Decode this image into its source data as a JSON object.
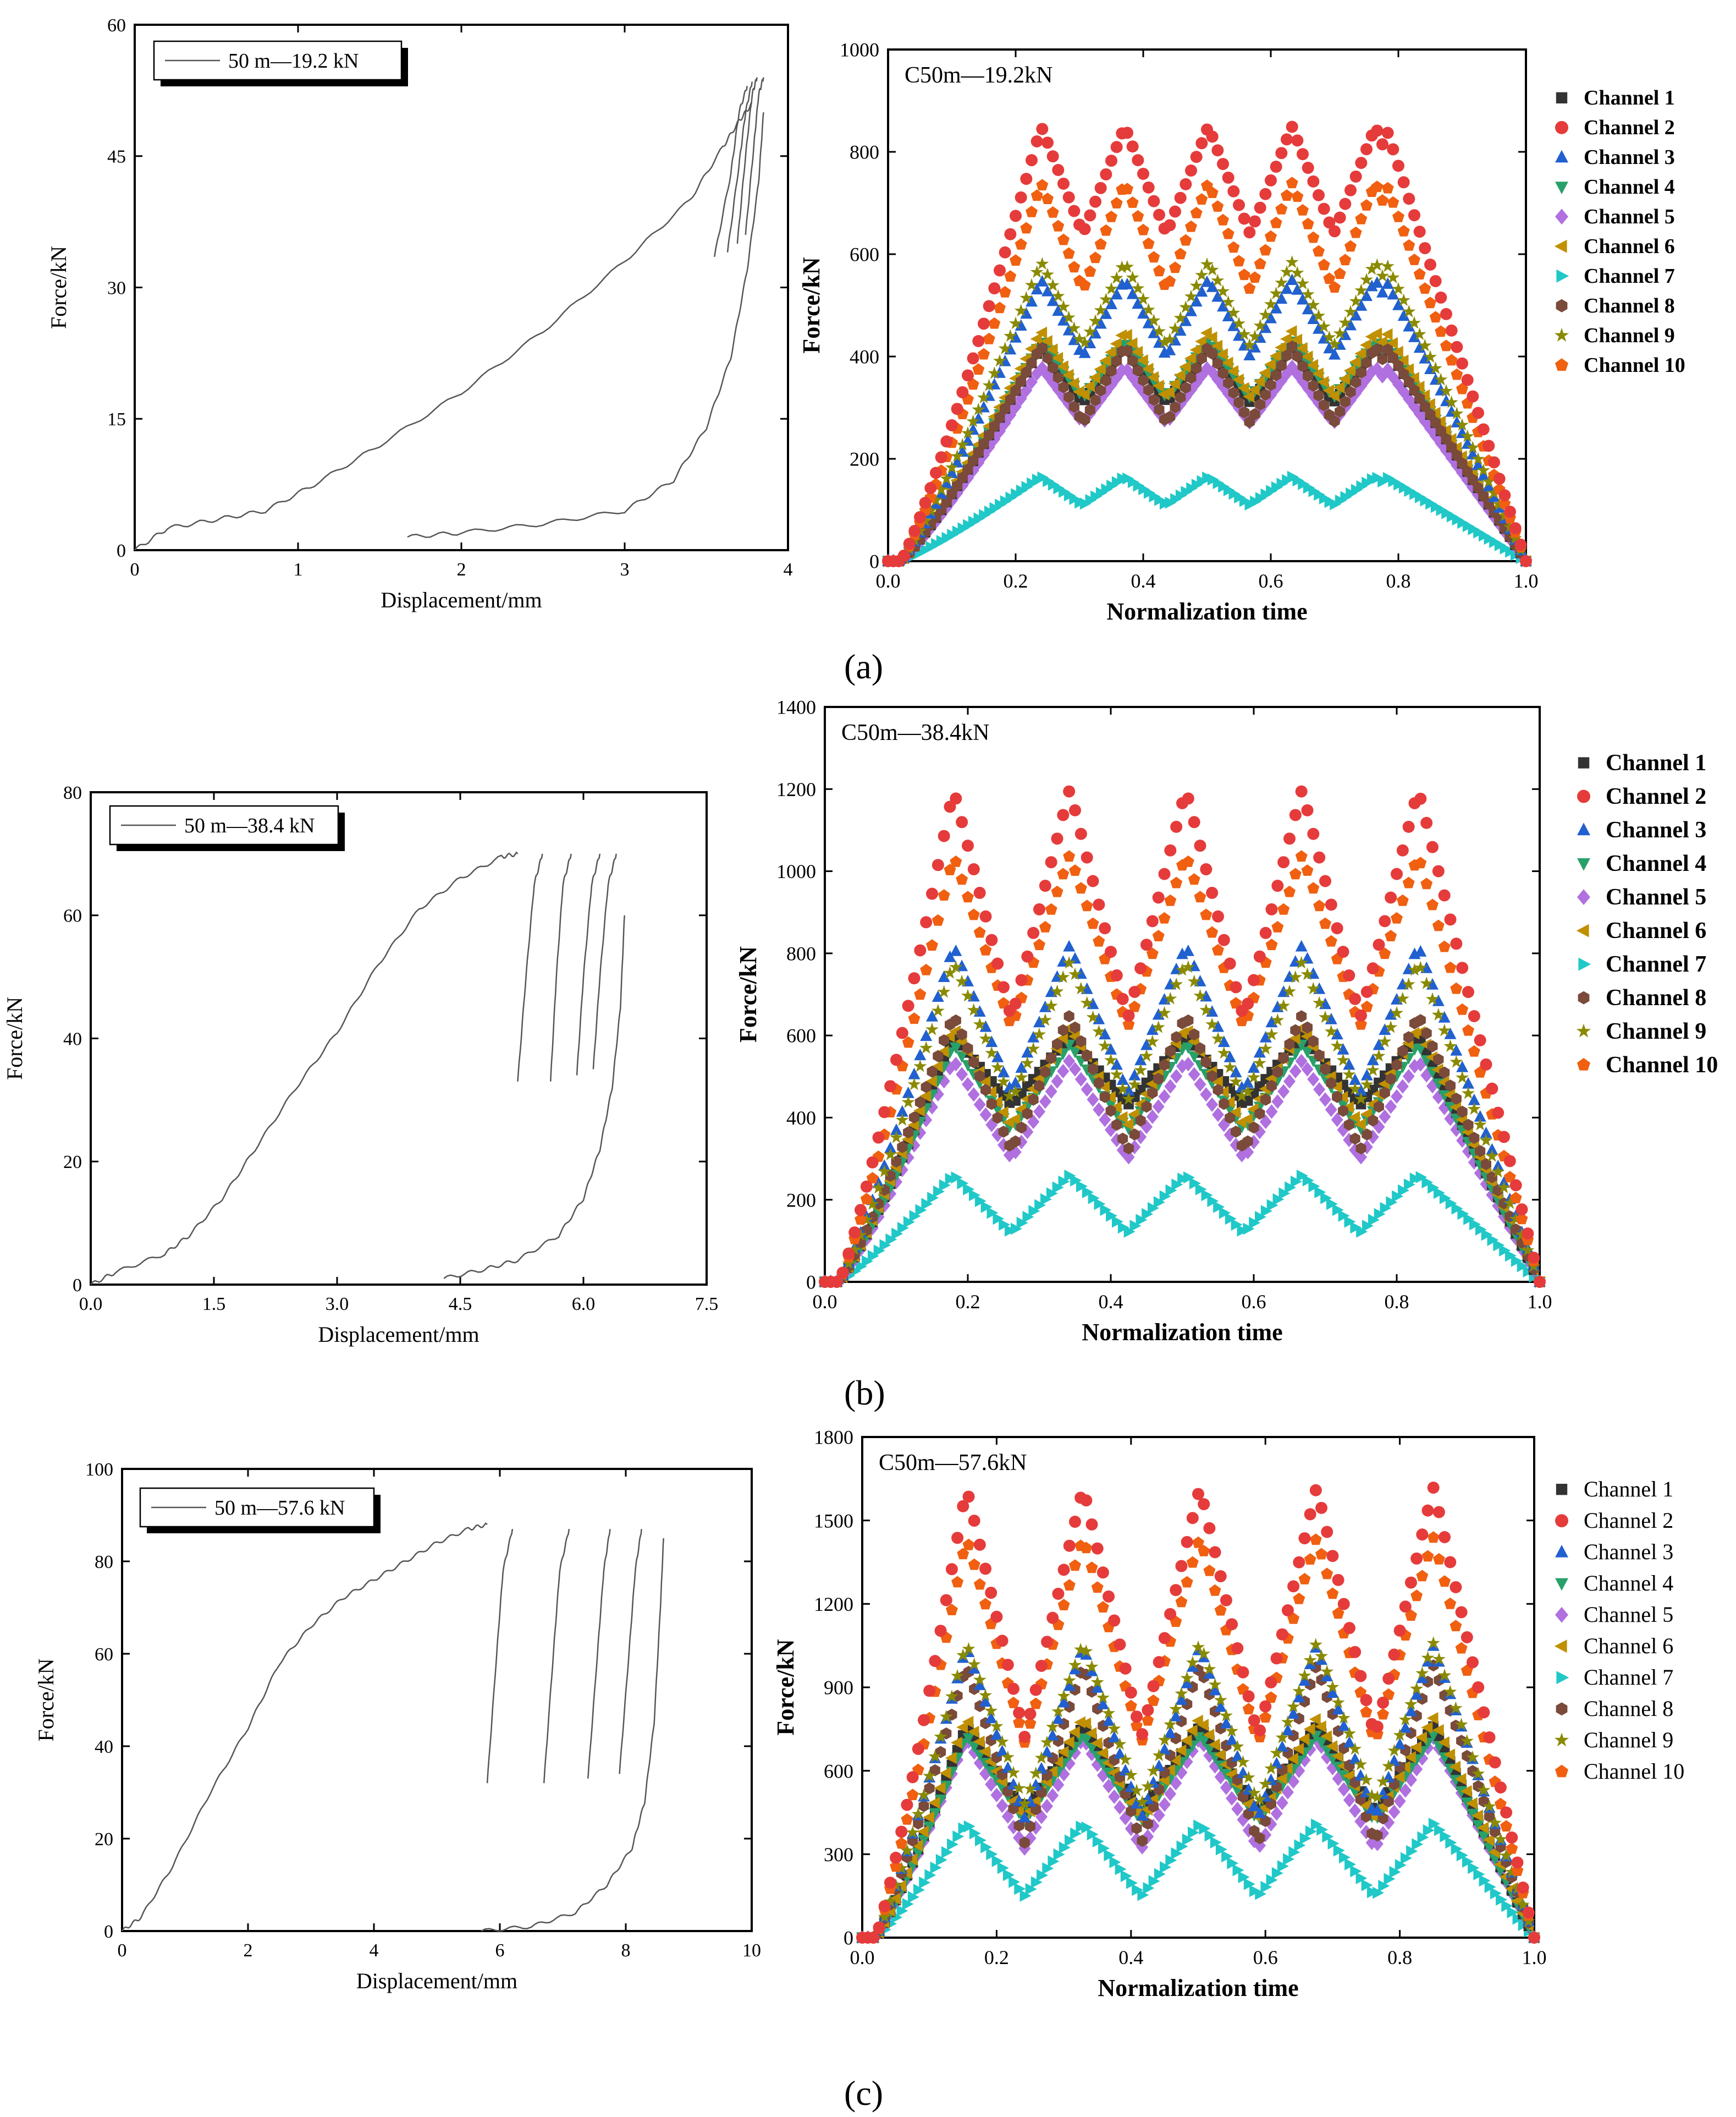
{
  "figure": {
    "panel_labels": [
      "(a)",
      "(b)",
      "(c)"
    ]
  },
  "chart_data": [
    {
      "id": "a-left",
      "type": "line",
      "xlabel": "Displacement/mm",
      "ylabel": "Force/kN",
      "xlim": [
        0,
        4
      ],
      "ylim": [
        0,
        60
      ],
      "xticks": [
        0,
        1,
        2,
        3,
        4
      ],
      "yticks": [
        0,
        15,
        30,
        45,
        60
      ],
      "legend": [
        "50 m—19.2 kN"
      ],
      "series": [
        {
          "name": "50 m—19.2 kN",
          "color": "#555555",
          "loading": [
            [
              0,
              0
            ],
            [
              0.2,
              2.5
            ],
            [
              0.5,
              3.5
            ],
            [
              0.8,
              4.5
            ],
            [
              1.1,
              7.5
            ],
            [
              1.5,
              12
            ],
            [
              2,
              18
            ],
            [
              2.5,
              25
            ],
            [
              3,
              33
            ],
            [
              3.4,
              40
            ],
            [
              3.6,
              46
            ],
            [
              3.7,
              49
            ],
            [
              3.78,
              51
            ]
          ],
          "cycles": [
            [
              [
                3.55,
                33.5
              ],
              [
                3.65,
                43
              ],
              [
                3.7,
                50
              ],
              [
                3.75,
                53
              ]
            ],
            [
              [
                3.63,
                34
              ],
              [
                3.7,
                44
              ],
              [
                3.74,
                50
              ],
              [
                3.78,
                53.5
              ]
            ],
            [
              [
                3.69,
                35
              ],
              [
                3.74,
                45
              ],
              [
                3.78,
                52
              ],
              [
                3.81,
                54
              ]
            ],
            [
              [
                3.74,
                36
              ],
              [
                3.79,
                46
              ],
              [
                3.82,
                52
              ],
              [
                3.85,
                54
              ]
            ]
          ],
          "unloading": [
            [
              1.67,
              1.5
            ],
            [
              2,
              2
            ],
            [
              2.5,
              3
            ],
            [
              3,
              4.5
            ],
            [
              3.3,
              8
            ],
            [
              3.5,
              14
            ],
            [
              3.65,
              22
            ],
            [
              3.75,
              32
            ],
            [
              3.82,
              42
            ],
            [
              3.85,
              50
            ]
          ]
        }
      ]
    },
    {
      "id": "a-right",
      "type": "scatter",
      "title": "C50m—19.2kN",
      "xlabel": "Normalization time",
      "ylabel": "Force/kN",
      "xlim": [
        0,
        1
      ],
      "ylim": [
        0,
        1000
      ],
      "xticks": [
        0.0,
        0.2,
        0.4,
        0.6,
        0.8,
        1.0
      ],
      "yticks": [
        0,
        200,
        400,
        600,
        800,
        1000
      ],
      "legend_bold": true,
      "cycles": 5,
      "rise_end": 0.24,
      "fall_start": 0.78,
      "period": 0.131,
      "series": [
        {
          "name": "Channel 1",
          "color": "#333333",
          "marker": "square",
          "peak": 420,
          "trough": 310
        },
        {
          "name": "Channel 2",
          "color": "#e63b3b",
          "marker": "circle",
          "peak": 850,
          "trough": 640
        },
        {
          "name": "Channel 3",
          "color": "#2060d0",
          "marker": "triangle-up",
          "peak": 550,
          "trough": 400
        },
        {
          "name": "Channel 4",
          "color": "#28a06a",
          "marker": "triangle-down",
          "peak": 430,
          "trough": 320
        },
        {
          "name": "Channel 5",
          "color": "#b070e0",
          "marker": "diamond",
          "peak": 380,
          "trough": 270
        },
        {
          "name": "Channel 6",
          "color": "#c09000",
          "marker": "triangle-left",
          "peak": 450,
          "trough": 320
        },
        {
          "name": "Channel 7",
          "color": "#20c8c8",
          "marker": "triangle-right",
          "peak": 165,
          "trough": 110
        },
        {
          "name": "Channel 8",
          "color": "#7a4a3a",
          "marker": "hexagon",
          "peak": 420,
          "trough": 270
        },
        {
          "name": "Channel 9",
          "color": "#8a8a00",
          "marker": "star",
          "peak": 585,
          "trough": 420
        },
        {
          "name": "Channel 10",
          "color": "#f06010",
          "marker": "pentagon",
          "peak": 740,
          "trough": 530
        }
      ]
    },
    {
      "id": "b-left",
      "type": "line",
      "xlabel": "Displacement/mm",
      "ylabel": "Force/kN",
      "xlim": [
        0,
        7.5
      ],
      "ylim": [
        0,
        80
      ],
      "xticks": [
        0.0,
        1.5,
        3.0,
        4.5,
        6.0,
        7.5
      ],
      "yticks": [
        0,
        20,
        40,
        60,
        80
      ],
      "legend": [
        "50 m—38.4 kN"
      ],
      "series": [
        {
          "name": "50 m—38.4 kN",
          "color": "#555555",
          "loading": [
            [
              0,
              0
            ],
            [
              0.3,
              2
            ],
            [
              0.9,
              5
            ],
            [
              1.2,
              8
            ],
            [
              1.6,
              14
            ],
            [
              2,
              22
            ],
            [
              2.5,
              32
            ],
            [
              3,
              41
            ],
            [
              3.5,
              52
            ],
            [
              4,
              61
            ],
            [
              4.5,
              66
            ],
            [
              5,
              69.5
            ],
            [
              5.2,
              70
            ]
          ],
          "cycles": [
            [
              [
                5.2,
                33
              ],
              [
                5.3,
                50
              ],
              [
                5.4,
                65
              ],
              [
                5.5,
                70
              ]
            ],
            [
              [
                5.6,
                33
              ],
              [
                5.67,
                50
              ],
              [
                5.75,
                65
              ],
              [
                5.85,
                70
              ]
            ],
            [
              [
                5.92,
                34
              ],
              [
                6,
                50
              ],
              [
                6.1,
                65
              ],
              [
                6.2,
                70
              ]
            ],
            [
              [
                6.12,
                35
              ],
              [
                6.2,
                50
              ],
              [
                6.3,
                65
              ],
              [
                6.4,
                70
              ]
            ]
          ],
          "unloading": [
            [
              4.3,
              1
            ],
            [
              4.8,
              2.5
            ],
            [
              5.2,
              4
            ],
            [
              5.7,
              8
            ],
            [
              6,
              14
            ],
            [
              6.2,
              22
            ],
            [
              6.35,
              32
            ],
            [
              6.45,
              45
            ],
            [
              6.5,
              60
            ]
          ]
        }
      ]
    },
    {
      "id": "b-right",
      "type": "scatter",
      "title": "C50m—38.4kN",
      "xlabel": "Normalization time",
      "ylabel": "Force/kN",
      "xlim": [
        0,
        1
      ],
      "ylim": [
        0,
        1400
      ],
      "xticks": [
        0.0,
        0.2,
        0.4,
        0.6,
        0.8,
        1.0
      ],
      "yticks": [
        0,
        200,
        400,
        600,
        800,
        1000,
        1200,
        1400
      ],
      "legend_bold": true,
      "cycles": 5,
      "rise_end": 0.18,
      "fall_start": 0.83,
      "period": 0.1625,
      "series": [
        {
          "name": "Channel 1",
          "color": "#333333",
          "marker": "square",
          "peak": 600,
          "trough": 430
        },
        {
          "name": "Channel 2",
          "color": "#e63b3b",
          "marker": "circle",
          "peak": 1200,
          "trough": 640
        },
        {
          "name": "Channel 3",
          "color": "#2060d0",
          "marker": "triangle-up",
          "peak": 820,
          "trough": 460
        },
        {
          "name": "Channel 4",
          "color": "#28a06a",
          "marker": "triangle-down",
          "peak": 580,
          "trough": 370
        },
        {
          "name": "Channel 5",
          "color": "#b070e0",
          "marker": "diamond",
          "peak": 540,
          "trough": 300
        },
        {
          "name": "Channel 6",
          "color": "#c09000",
          "marker": "triangle-left",
          "peak": 620,
          "trough": 380
        },
        {
          "name": "Channel 7",
          "color": "#20c8c8",
          "marker": "triangle-right",
          "peak": 260,
          "trough": 120
        },
        {
          "name": "Channel 8",
          "color": "#7a4a3a",
          "marker": "hexagon",
          "peak": 650,
          "trough": 320
        },
        {
          "name": "Channel 9",
          "color": "#8a8a00",
          "marker": "star",
          "peak": 780,
          "trough": 440
        },
        {
          "name": "Channel 10",
          "color": "#f06010",
          "marker": "pentagon",
          "peak": 1040,
          "trough": 620
        }
      ]
    },
    {
      "id": "c-left",
      "type": "line",
      "xlabel": "Displacement/mm",
      "ylabel": "Force/kN",
      "xlim": [
        0,
        10
      ],
      "ylim": [
        0,
        100
      ],
      "xticks": [
        0,
        2,
        4,
        6,
        8,
        10
      ],
      "yticks": [
        0,
        20,
        40,
        60,
        80,
        100
      ],
      "legend": [
        "50 m—57.6 kN"
      ],
      "series": [
        {
          "name": "50 m—57.6 kN",
          "color": "#555555",
          "loading": [
            [
              0,
              0
            ],
            [
              0.3,
              3
            ],
            [
              0.8,
              14
            ],
            [
              1.4,
              30
            ],
            [
              2,
              44
            ],
            [
              2.5,
              58
            ],
            [
              3,
              66
            ],
            [
              3.5,
              72
            ],
            [
              4,
              76
            ],
            [
              4.5,
              80
            ],
            [
              5,
              84
            ],
            [
              5.5,
              87
            ],
            [
              5.8,
              88
            ]
          ],
          "cycles": [
            [
              [
                5.8,
                32
              ],
              [
                5.95,
                60
              ],
              [
                6.05,
                78
              ],
              [
                6.2,
                87
              ]
            ],
            [
              [
                6.7,
                32
              ],
              [
                6.85,
                60
              ],
              [
                6.95,
                78
              ],
              [
                7.1,
                87
              ]
            ],
            [
              [
                7.4,
                33
              ],
              [
                7.55,
                60
              ],
              [
                7.65,
                78
              ],
              [
                7.75,
                87
              ]
            ],
            [
              [
                7.9,
                34
              ],
              [
                8.05,
                60
              ],
              [
                8.15,
                78
              ],
              [
                8.25,
                87
              ]
            ]
          ],
          "unloading": [
            [
              5.7,
              0
            ],
            [
              6.5,
              1
            ],
            [
              7.2,
              4
            ],
            [
              7.7,
              10
            ],
            [
              8.1,
              18
            ],
            [
              8.3,
              28
            ],
            [
              8.45,
              45
            ],
            [
              8.55,
              70
            ],
            [
              8.6,
              85
            ]
          ]
        }
      ]
    },
    {
      "id": "c-right",
      "type": "scatter",
      "title": "C50m—57.6kN",
      "xlabel": "Normalization time",
      "ylabel": "Force/kN",
      "xlim": [
        0,
        1
      ],
      "ylim": [
        0,
        1800
      ],
      "xticks": [
        0.0,
        0.2,
        0.4,
        0.6,
        0.8,
        1.0
      ],
      "yticks": [
        0,
        300,
        600,
        900,
        1200,
        1500,
        1800
      ],
      "legend_bold": false,
      "cycles": 5,
      "rise_end": 0.155,
      "fall_start": 0.85,
      "period": 0.1737,
      "series": [
        {
          "name": "Channel 1",
          "color": "#333333",
          "marker": "square",
          "peak": 760,
          "trough": 450
        },
        {
          "name": "Channel 2",
          "color": "#e63b3b",
          "marker": "circle",
          "peak": 1620,
          "trough": 720
        },
        {
          "name": "Channel 3",
          "color": "#2060d0",
          "marker": "triangle-up",
          "peak": 1050,
          "trough": 430
        },
        {
          "name": "Channel 4",
          "color": "#28a06a",
          "marker": "triangle-down",
          "peak": 730,
          "trough": 420
        },
        {
          "name": "Channel 5",
          "color": "#b070e0",
          "marker": "diamond",
          "peak": 720,
          "trough": 320
        },
        {
          "name": "Channel 6",
          "color": "#c09000",
          "marker": "triangle-left",
          "peak": 790,
          "trough": 420
        },
        {
          "name": "Channel 7",
          "color": "#20c8c8",
          "marker": "triangle-right",
          "peak": 410,
          "trough": 150
        },
        {
          "name": "Channel 8",
          "color": "#7a4a3a",
          "marker": "hexagon",
          "peak": 980,
          "trough": 340
        },
        {
          "name": "Channel 9",
          "color": "#8a8a00",
          "marker": "star",
          "peak": 1060,
          "trough": 480
        },
        {
          "name": "Channel 10",
          "color": "#f06010",
          "marker": "pentagon",
          "peak": 1440,
          "trough": 700
        }
      ]
    }
  ]
}
